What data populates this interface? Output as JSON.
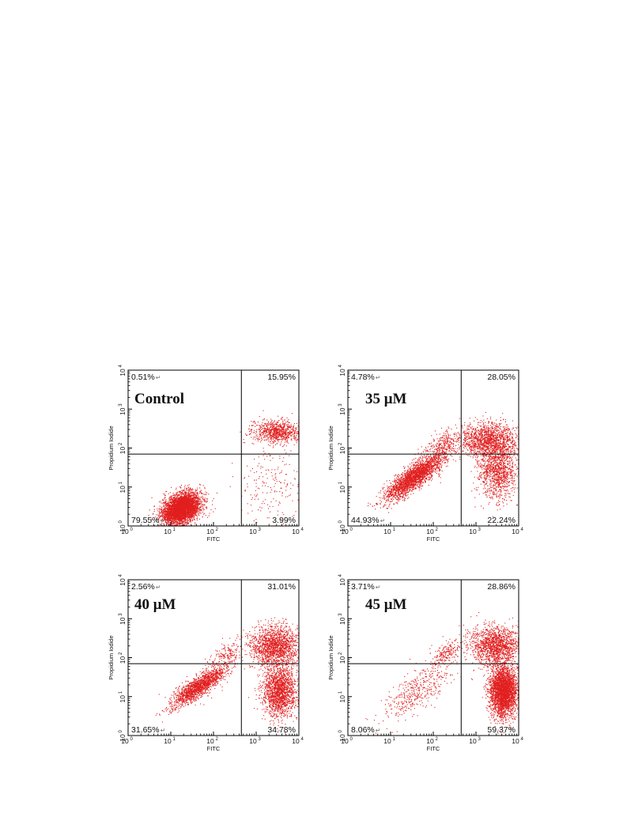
{
  "figure": {
    "colors": {
      "dots": "#e11f1f",
      "axes": "#000000",
      "background": "#ffffff"
    },
    "enter_mark": "↵"
  },
  "chart_data": [
    {
      "type": "scatter",
      "label": "Control",
      "xlabel": "FITC",
      "ylabel": "Propidium Iodide",
      "xscale": "log",
      "yscale": "log",
      "xlim": [
        1,
        10000
      ],
      "ylim": [
        1,
        10000
      ],
      "x_ticks": [
        "10",
        "10",
        "10",
        "10",
        "10"
      ],
      "x_tick_exp": [
        "0",
        "1",
        "2",
        "3",
        "4"
      ],
      "y_ticks": [
        "10",
        "10",
        "10",
        "10",
        "10"
      ],
      "y_tick_exp": [
        "0",
        "1",
        "2",
        "3",
        "4"
      ],
      "gate": {
        "x": 450,
        "y": 70
      },
      "quadrants": {
        "upper_left": "0.51%",
        "upper_right": "15.95%",
        "lower_left": "79.55%",
        "lower_right": "3.99%"
      },
      "clusters": [
        {
          "region": "lower-left",
          "cx_log": 1.25,
          "cy_log": 0.45,
          "sx": 0.22,
          "sy": 0.2,
          "rho": 0.35,
          "share": 0.8
        },
        {
          "region": "upper-right",
          "cx_log": 3.5,
          "cy_log": 2.42,
          "sx": 0.3,
          "sy": 0.14,
          "rho": 0.0,
          "share": 0.16
        },
        {
          "region": "lower-right",
          "cx_log": 3.3,
          "cy_log": 1.1,
          "sx": 0.35,
          "sy": 0.6,
          "rho": 0.0,
          "share": 0.04
        }
      ]
    },
    {
      "type": "scatter",
      "label": "35 μM",
      "xlabel": "FITC",
      "ylabel": "Propidium Iodide",
      "xscale": "log",
      "yscale": "log",
      "xlim": [
        1,
        10000
      ],
      "ylim": [
        1,
        10000
      ],
      "x_ticks": [
        "10",
        "10",
        "10",
        "10",
        "10"
      ],
      "x_tick_exp": [
        "0",
        "1",
        "2",
        "3",
        "4"
      ],
      "y_ticks": [
        "10",
        "10",
        "10",
        "10",
        "10"
      ],
      "y_tick_exp": [
        "0",
        "1",
        "2",
        "3",
        "4"
      ],
      "gate": {
        "x": 450,
        "y": 70
      },
      "quadrants": {
        "upper_left": "4.78%",
        "upper_right": "28.05%",
        "lower_left": "44.93%",
        "lower_right": "22.24%"
      },
      "clusters": [
        {
          "region": "lower-left",
          "cx_log": 1.55,
          "cy_log": 1.25,
          "sx": 0.35,
          "sy": 0.3,
          "rho": 0.85,
          "share": 0.45
        },
        {
          "region": "upper-left",
          "cx_log": 2.2,
          "cy_log": 2.05,
          "sx": 0.22,
          "sy": 0.18,
          "rho": 0.5,
          "share": 0.05
        },
        {
          "region": "upper-right",
          "cx_log": 3.3,
          "cy_log": 2.2,
          "sx": 0.35,
          "sy": 0.22,
          "rho": 0.0,
          "share": 0.28
        },
        {
          "region": "lower-right",
          "cx_log": 3.5,
          "cy_log": 1.4,
          "sx": 0.22,
          "sy": 0.35,
          "rho": 0.0,
          "share": 0.22
        }
      ]
    },
    {
      "type": "scatter",
      "label": "40 μM",
      "xlabel": "FITC",
      "ylabel": "Propidium Iodide",
      "xscale": "log",
      "yscale": "log",
      "xlim": [
        1,
        10000
      ],
      "ylim": [
        1,
        10000
      ],
      "x_ticks": [
        "10",
        "10",
        "10",
        "10",
        "10"
      ],
      "x_tick_exp": [
        "0",
        "1",
        "2",
        "3",
        "4"
      ],
      "y_ticks": [
        "10",
        "10",
        "10",
        "10",
        "10"
      ],
      "y_tick_exp": [
        "0",
        "1",
        "2",
        "3",
        "4"
      ],
      "gate": {
        "x": 450,
        "y": 70
      },
      "quadrants": {
        "upper_left": "2.56%",
        "upper_right": "31.01%",
        "lower_left": "31.65%",
        "lower_right": "34.78%"
      },
      "clusters": [
        {
          "region": "lower-left",
          "cx_log": 1.65,
          "cy_log": 1.25,
          "sx": 0.32,
          "sy": 0.26,
          "rho": 0.85,
          "share": 0.32
        },
        {
          "region": "upper-left",
          "cx_log": 2.3,
          "cy_log": 2.1,
          "sx": 0.18,
          "sy": 0.18,
          "rho": 0.6,
          "share": 0.03
        },
        {
          "region": "upper-right",
          "cx_log": 3.45,
          "cy_log": 2.3,
          "sx": 0.28,
          "sy": 0.25,
          "rho": 0.0,
          "share": 0.31
        },
        {
          "region": "lower-right",
          "cx_log": 3.55,
          "cy_log": 1.15,
          "sx": 0.2,
          "sy": 0.35,
          "rho": 0.0,
          "share": 0.34
        }
      ]
    },
    {
      "type": "scatter",
      "label": "45 μM",
      "xlabel": "FITC",
      "ylabel": "Propidium Iodide",
      "xscale": "log",
      "yscale": "log",
      "xlim": [
        1,
        10000
      ],
      "ylim": [
        1,
        10000
      ],
      "x_ticks": [
        "10",
        "10",
        "10",
        "10",
        "10"
      ],
      "x_tick_exp": [
        "0",
        "1",
        "2",
        "3",
        "4"
      ],
      "y_ticks": [
        "10",
        "10",
        "10",
        "10",
        "10"
      ],
      "y_tick_exp": [
        "0",
        "1",
        "2",
        "3",
        "4"
      ],
      "gate": {
        "x": 450,
        "y": 70
      },
      "quadrants": {
        "upper_left": "3.71%",
        "upper_right": "28.86%",
        "lower_left": "8.06%",
        "lower_right": "59.37%"
      },
      "clusters": [
        {
          "region": "lower-left",
          "cx_log": 1.6,
          "cy_log": 1.1,
          "sx": 0.4,
          "sy": 0.35,
          "rho": 0.7,
          "share": 0.08
        },
        {
          "region": "upper-left",
          "cx_log": 2.3,
          "cy_log": 2.1,
          "sx": 0.2,
          "sy": 0.18,
          "rho": 0.6,
          "share": 0.04
        },
        {
          "region": "upper-right",
          "cx_log": 3.45,
          "cy_log": 2.3,
          "sx": 0.3,
          "sy": 0.25,
          "rho": 0.0,
          "share": 0.29
        },
        {
          "region": "lower-right",
          "cx_log": 3.65,
          "cy_log": 1.15,
          "sx": 0.16,
          "sy": 0.33,
          "rho": 0.0,
          "share": 0.59
        }
      ]
    }
  ]
}
